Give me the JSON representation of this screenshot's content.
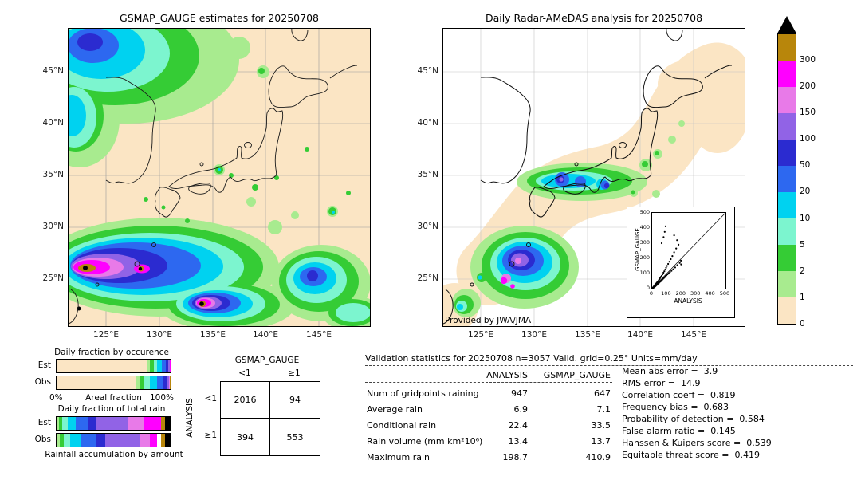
{
  "palette": {
    "over": "#000000",
    "p300": "#b8860b",
    "p200": "#ff00ff",
    "p150": "#e87ae8",
    "p100": "#9163e6",
    "p50": "#2b2bd0",
    "p20": "#2d68f0",
    "p10": "#00d2f0",
    "p5": "#7cf5cf",
    "p2": "#35cc35",
    "p1": "#a8eb8f",
    "p0": "#fbe5c4"
  },
  "left_map": {
    "title": "GSMAP_GAUGE estimates for 20250708",
    "lat_ticks": [
      "45°N",
      "40°N",
      "35°N",
      "30°N",
      "25°N"
    ],
    "lon_ticks": [
      "125°E",
      "130°E",
      "135°E",
      "140°E",
      "145°E"
    ]
  },
  "right_map": {
    "title": "Daily Radar-AMeDAS analysis for 20250708",
    "lat_ticks": [
      "45°N",
      "40°N",
      "35°N",
      "30°N",
      "25°N"
    ],
    "lon_ticks": [
      "125°E",
      "130°E",
      "135°E",
      "140°E",
      "145°E"
    ],
    "credit": "Provided by JWA/JMA"
  },
  "colorbar": {
    "labels": [
      "300",
      "200",
      "150",
      "100",
      "50",
      "20",
      "10",
      "5",
      "2",
      "1",
      "0"
    ],
    "colors": [
      "#b8860b",
      "#ff00ff",
      "#e87ae8",
      "#9163e6",
      "#2b2bd0",
      "#2d68f0",
      "#00d2f0",
      "#7cf5cf",
      "#35cc35",
      "#a8eb8f",
      "#fbe5c4"
    ],
    "over_color": "#000000",
    "units": "mm/day"
  },
  "inset": {
    "xlabel": "ANALYSIS",
    "ylabel": "GSMAP_GAUGE",
    "ticks": [
      "0",
      "100",
      "200",
      "300",
      "400",
      "500"
    ]
  },
  "fractions": {
    "occurrence_title": "Daily fraction by occurence",
    "row_est": "Est",
    "row_obs": "Obs",
    "pct_min": "0%",
    "areal_label": "Areal fraction",
    "pct_max": "100%",
    "totalrain_title": "Daily fraction of total rain",
    "accum_label": "Rainfall accumulation by amount",
    "occurrence_est": [
      [
        "#fbe5c4",
        79
      ],
      [
        "#a8eb8f",
        3
      ],
      [
        "#35cc35",
        3
      ],
      [
        "#7cf5cf",
        3
      ],
      [
        "#00d2f0",
        4
      ],
      [
        "#2d68f0",
        4
      ],
      [
        "#2b2bd0",
        2
      ],
      [
        "#9163e6",
        1
      ],
      [
        "#e87ae8",
        0.4
      ],
      [
        "#ff00ff",
        0.3
      ],
      [
        "#b8860b",
        0.2
      ],
      [
        "#000000",
        0.1
      ]
    ],
    "occurrence_obs": [
      [
        "#fbe5c4",
        69
      ],
      [
        "#a8eb8f",
        4
      ],
      [
        "#35cc35",
        4
      ],
      [
        "#7cf5cf",
        5
      ],
      [
        "#00d2f0",
        6
      ],
      [
        "#2d68f0",
        6
      ],
      [
        "#2b2bd0",
        3
      ],
      [
        "#9163e6",
        1.6
      ],
      [
        "#e87ae8",
        0.6
      ],
      [
        "#ff00ff",
        0.4
      ],
      [
        "#b8860b",
        0.2
      ],
      [
        "#000000",
        0.2
      ]
    ],
    "totalrain_est": [
      [
        "#fbe5c4",
        1
      ],
      [
        "#a8eb8f",
        1
      ],
      [
        "#35cc35",
        3
      ],
      [
        "#7cf5cf",
        5
      ],
      [
        "#00d2f0",
        7
      ],
      [
        "#2d68f0",
        10
      ],
      [
        "#2b2bd0",
        8
      ],
      [
        "#9163e6",
        28
      ],
      [
        "#e87ae8",
        13
      ],
      [
        "#ff00ff",
        16
      ],
      [
        "#b8860b",
        3
      ],
      [
        "#000000",
        5
      ]
    ],
    "totalrain_obs": [
      [
        "#fbe5c4",
        1
      ],
      [
        "#a8eb8f",
        2
      ],
      [
        "#35cc35",
        3
      ],
      [
        "#7cf5cf",
        6
      ],
      [
        "#00d2f0",
        9
      ],
      [
        "#2d68f0",
        13
      ],
      [
        "#2b2bd0",
        9
      ],
      [
        "#9163e6",
        30
      ],
      [
        "#e87ae8",
        9
      ],
      [
        "#ff00ff",
        6
      ],
      [
        "#ffffff",
        4
      ],
      [
        "#b8860b",
        3
      ],
      [
        "#000000",
        5
      ]
    ]
  },
  "contingency": {
    "col_header": "GSMAP_GAUGE",
    "row_header": "ANALYSIS",
    "col_labels": [
      "<1",
      "≥1"
    ],
    "row_labels": [
      "<1",
      "≥1"
    ],
    "values": [
      [
        "2016",
        "94"
      ],
      [
        "394",
        "553"
      ]
    ]
  },
  "stats": {
    "title": "Validation statistics for 20250708  n=3057 Valid. grid=0.25° Units=mm/day",
    "col_headers": [
      "ANALYSIS",
      "GSMAP_GAUGE"
    ],
    "rows": [
      {
        "label": "Num of gridpoints raining",
        "analysis": "947",
        "gsmap": "647"
      },
      {
        "label": "Average rain",
        "analysis": "6.9",
        "gsmap": "7.1"
      },
      {
        "label": "Conditional rain",
        "analysis": "22.4",
        "gsmap": "33.5"
      },
      {
        "label": "Rain volume (mm km²10⁶)",
        "analysis": "13.4",
        "gsmap": "13.7"
      },
      {
        "label": "Maximum rain",
        "analysis": "198.7",
        "gsmap": "410.9"
      }
    ],
    "metrics": [
      "Mean abs error =  3.9",
      "RMS error =  14.9",
      "Correlation coeff =  0.819",
      "Frequency bias =  0.683",
      "Probability of detection =  0.584",
      "False alarm ratio =  0.145",
      "Hanssen & Kuipers score =  0.539",
      "Equitable threat score =  0.419"
    ]
  },
  "chart_data": [
    {
      "type": "heatmap",
      "title": "GSMAP_GAUGE estimates for 20250708",
      "units": "mm/day",
      "x_ticks": [
        "125°E",
        "130°E",
        "135°E",
        "140°E",
        "145°E"
      ],
      "y_ticks": [
        "45°N",
        "40°N",
        "35°N",
        "30°N",
        "25°N"
      ],
      "levels": [
        0,
        1,
        2,
        5,
        10,
        20,
        50,
        100,
        150,
        200,
        300
      ],
      "description": "Gauge-adjusted satellite precipitation over Japan region; intense rain band near 24-28°N between 122-134°E with cores exceeding 300 mm/day (black), second cells near 131-134°E 23-24°N; moderate cyan/blue rain area in NW corner near 45°N 122°E; scattered light rain over western Japan."
    },
    {
      "type": "heatmap",
      "title": "Daily Radar-AMeDAS analysis for 20250708",
      "units": "mm/day",
      "x_ticks": [
        "125°E",
        "130°E",
        "135°E",
        "140°E",
        "145°E"
      ],
      "y_ticks": [
        "45°N",
        "40°N",
        "35°N",
        "30°N",
        "25°N"
      ],
      "levels": [
        0,
        1,
        2,
        5,
        10,
        20,
        50,
        100,
        150,
        200,
        300
      ],
      "description": "Radar-AMeDAS analyzed precipitation inside radar coverage (beige band along the archipelago); rain band with blue cores over western Japan near 34-35°N; intense cell near 26-27°N 127-129°E reaching 150-300 mm/day; light rain near Taiwan and Okinawa radar circles."
    },
    {
      "type": "scatter",
      "xlabel": "ANALYSIS",
      "ylabel": "GSMAP_GAUGE",
      "xlim": [
        0,
        500
      ],
      "ylim": [
        0,
        500
      ],
      "ref_line": "y=x",
      "points": [
        [
          3,
          2
        ],
        [
          5,
          7
        ],
        [
          6,
          4
        ],
        [
          8,
          10
        ],
        [
          9,
          6
        ],
        [
          11,
          14
        ],
        [
          12,
          9
        ],
        [
          14,
          17
        ],
        [
          15,
          11
        ],
        [
          17,
          22
        ],
        [
          18,
          13
        ],
        [
          20,
          25
        ],
        [
          22,
          16
        ],
        [
          24,
          28
        ],
        [
          25,
          19
        ],
        [
          27,
          33
        ],
        [
          29,
          22
        ],
        [
          31,
          38
        ],
        [
          33,
          26
        ],
        [
          35,
          42
        ],
        [
          37,
          30
        ],
        [
          40,
          48
        ],
        [
          42,
          34
        ],
        [
          45,
          55
        ],
        [
          47,
          38
        ],
        [
          50,
          62
        ],
        [
          52,
          44
        ],
        [
          55,
          70
        ],
        [
          58,
          48
        ],
        [
          60,
          78
        ],
        [
          63,
          53
        ],
        [
          66,
          85
        ],
        [
          68,
          58
        ],
        [
          71,
          95
        ],
        [
          74,
          64
        ],
        [
          77,
          105
        ],
        [
          80,
          70
        ],
        [
          83,
          115
        ],
        [
          86,
          76
        ],
        [
          89,
          126
        ],
        [
          92,
          82
        ],
        [
          95,
          138
        ],
        [
          98,
          88
        ],
        [
          101,
          150
        ],
        [
          105,
          95
        ],
        [
          109,
          163
        ],
        [
          113,
          102
        ],
        [
          118,
          178
        ],
        [
          122,
          110
        ],
        [
          127,
          195
        ],
        [
          132,
          118
        ],
        [
          138,
          215
        ],
        [
          144,
          128
        ],
        [
          150,
          240
        ],
        [
          157,
          140
        ],
        [
          164,
          265
        ],
        [
          172,
          155
        ],
        [
          180,
          290
        ],
        [
          188,
          170
        ],
        [
          196,
          185
        ],
        [
          198,
          160
        ],
        [
          92,
          411
        ],
        [
          86,
          375
        ],
        [
          78,
          340
        ],
        [
          65,
          300
        ],
        [
          150,
          352
        ],
        [
          170,
          320
        ]
      ]
    },
    {
      "type": "table",
      "title": "Contingency table (number of gridpoints)",
      "col_group": "GSMAP_GAUGE",
      "row_group": "ANALYSIS",
      "columns": [
        "<1",
        "≥1"
      ],
      "rows": [
        {
          "row": "<1",
          "values": [
            2016,
            94
          ]
        },
        {
          "row": "≥1",
          "values": [
            394,
            553
          ]
        }
      ]
    },
    {
      "type": "table",
      "title": "Validation statistics for 20250708, n=3057, grid=0.25°, units=mm/day",
      "columns": [
        "ANALYSIS",
        "GSMAP_GAUGE"
      ],
      "rows": [
        [
          "Num of gridpoints raining",
          947,
          647
        ],
        [
          "Average rain",
          6.9,
          7.1
        ],
        [
          "Conditional rain",
          22.4,
          33.5
        ],
        [
          "Rain volume (mm km²10⁶)",
          13.4,
          13.7
        ],
        [
          "Maximum rain",
          198.7,
          410.9
        ]
      ],
      "scores": {
        "mean_abs_error": 3.9,
        "rms_error": 14.9,
        "correlation_coeff": 0.819,
        "frequency_bias": 0.683,
        "probability_of_detection": 0.584,
        "false_alarm_ratio": 0.145,
        "hanssen_kuipers_score": 0.539,
        "equitable_threat_score": 0.419
      }
    }
  ]
}
